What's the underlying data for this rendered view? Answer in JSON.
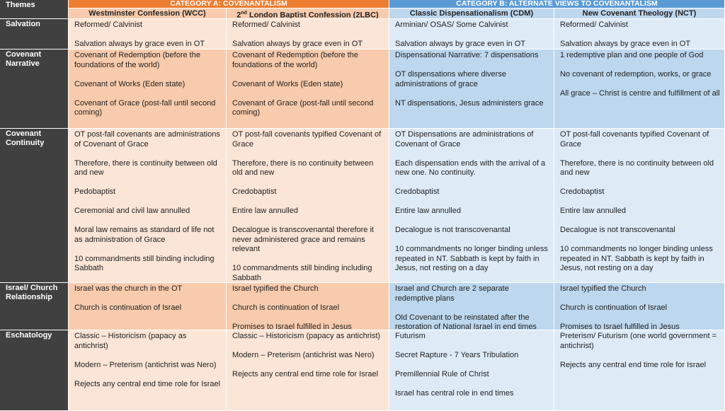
{
  "header": {
    "themes": "Themes",
    "categories": [
      "CATEGORY A: COVENANTALISM",
      "CATEGORY B: ALTERNATE VIEWS TO COVENANTALISM"
    ],
    "columns": [
      {
        "prefix": "",
        "sup": "",
        "text": "Westminster Confession (WCC)"
      },
      {
        "prefix": "2",
        "sup": "nd",
        "text": " London Baptist Confession (2LBC)"
      },
      {
        "prefix": "",
        "sup": "",
        "text": "Classic Dispensationalism (CDM)"
      },
      {
        "prefix": "",
        "sup": "",
        "text": "New Covenant Theology (NCT)"
      }
    ]
  },
  "rows": [
    {
      "theme": "Salvation",
      "cells": [
        [
          "Reformed/ Calvinist",
          "Salvation always by grace even in OT"
        ],
        [
          "Reformed/ Calvinist",
          "Salvation always by grace even in OT"
        ],
        [
          "Arminian/ OSAS/ Some Calvinist",
          "Salvation always by grace even in OT"
        ],
        [
          "Reformed/ Calvinist",
          "Salvation always by grace even in OT"
        ]
      ]
    },
    {
      "theme": "Covenant Narrative",
      "cells": [
        [
          "Covenant of Redemption (before the foundations of the world)",
          "Covenant of Works (Eden state)",
          "Covenant of Grace (post-fall until second coming)"
        ],
        [
          "Covenant of Redemption (before the foundations of the world)",
          "Covenant of Works (Eden state)",
          "Covenant of Grace (post-fall until second coming)"
        ],
        [
          "Dispensational Narrative: 7 dispensations",
          "OT dispensations where diverse administrations of grace",
          "NT dispensations, Jesus administers grace"
        ],
        [
          "1 redemptive plan and one people of God",
          "No covenant of redemption, works, or grace",
          "All grace – Christ is centre and fulfillment of all"
        ]
      ]
    },
    {
      "theme": "Covenant Continuity",
      "cells": [
        [
          "OT post-fall covenants are administrations of Covenant of Grace",
          "Therefore, there is continuity between old and new",
          "Pedobaptist",
          "Ceremonial and civil law annulled",
          "Moral law remains as standard of life not as administration of Grace",
          "10 commandments still binding including Sabbath"
        ],
        [
          "OT post-fall covenants typified Covenant of Grace",
          "Therefore, there is no continuity between old and new",
          "Credobaptist",
          "Entire law annulled",
          "Decalogue is transcovenantal therefore it never administered grace and remains relevant",
          "10 commandments still binding including Sabbath"
        ],
        [
          "OT Dispensations are administrations of Covenant of Grace",
          "Each dispensation ends with the arrival of a new one. No continuity.",
          "Credobaptist",
          "Entire law annulled",
          "Decalogue is not transcovenantal",
          "10 commandments no longer binding unless repeated in NT. Sabbath is kept by faith in Jesus, not resting on a day"
        ],
        [
          "OT post-fall covenants typified Covenant of Grace",
          "Therefore, there is no continuity between old and new",
          "Credobaptist",
          "Entire law annulled",
          "Decalogue is not transcovenantal",
          "10 commandments no longer binding unless repeated in NT. Sabbath is kept by faith in Jesus, not resting on a day"
        ]
      ]
    },
    {
      "theme": "Israel/ Church Relationship",
      "cells": [
        [
          "Israel was the church in the OT",
          "Church is continuation of Israel"
        ],
        [
          "Israel typified the Church",
          "Church is continuation of Israel",
          "Promises to Israel fulfilled in Jesus"
        ],
        [
          "Israel and Church are 2 separate redemptive plans",
          "Old Covenant to be reinstated after the restoration of National Israel in end times"
        ],
        [
          "Israel typified the Church",
          "Church is continuation of Israel",
          "Promises to Israel fulfilled in Jesus"
        ]
      ]
    },
    {
      "theme": "Eschatology",
      "cells": [
        [
          "Classic – Historicism (papacy as antichrist)",
          "Modern – Preterism (antichrist was Nero)",
          "Rejects any central end time role for Israel"
        ],
        [
          "Classic – Historicism (papacy as antichrist)",
          "Modern – Preterism (antichrist was Nero)",
          "Rejects any central end time role for Israel"
        ],
        [
          "Futurism",
          "Secret Rapture - 7 Years Tribulation",
          "Premillennial Rule of Christ",
          "Israel has central role in end times"
        ],
        [
          "Preterism/ Futurism (one world government = antichrist)",
          "Rejects any central end time role for Israel"
        ]
      ]
    }
  ]
}
